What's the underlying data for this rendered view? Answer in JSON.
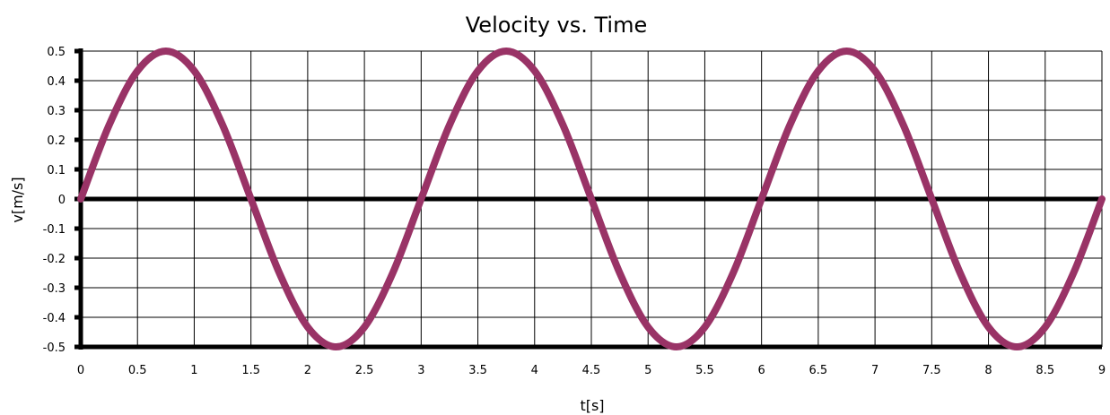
{
  "chart_data": {
    "type": "line",
    "title": "Velocity vs. Time",
    "xlabel": "t[s]",
    "ylabel": "v[m/s]",
    "xlim": [
      0,
      9
    ],
    "ylim": [
      -0.5,
      0.5
    ],
    "x_ticks": [
      "0",
      "0.5",
      "1",
      "1.5",
      "2",
      "2.5",
      "3",
      "3.5",
      "4",
      "4.5",
      "5",
      "5.5",
      "6",
      "6.5",
      "7",
      "7.5",
      "8",
      "8.5",
      "9"
    ],
    "y_ticks": [
      "0.5",
      "0.4",
      "0.3",
      "0.2",
      "0.1",
      "0",
      "-0.1",
      "-0.2",
      "-0.3",
      "-0.4",
      "-0.5"
    ],
    "grid": true,
    "series": [
      {
        "color": "#993366",
        "x": [
          0,
          0.25,
          0.5,
          0.75,
          1,
          1.25,
          1.5,
          1.75,
          2,
          2.25,
          2.5,
          2.75,
          3,
          3.25,
          3.5,
          3.75,
          4,
          4.25,
          4.5,
          4.75,
          5,
          5.25,
          5.5,
          5.75,
          6,
          6.25,
          6.5,
          6.75,
          7,
          7.25,
          7.5,
          7.75,
          8,
          8.25,
          8.5,
          8.75,
          9
        ],
        "values": [
          0,
          0.25,
          0.433,
          0.5,
          0.433,
          0.25,
          0,
          -0.25,
          -0.433,
          -0.5,
          -0.433,
          -0.25,
          0,
          0.25,
          0.433,
          0.5,
          0.433,
          0.25,
          0,
          -0.25,
          -0.433,
          -0.5,
          -0.433,
          -0.25,
          0,
          0.25,
          0.433,
          0.5,
          0.433,
          0.25,
          0,
          -0.25,
          -0.433,
          -0.5,
          -0.433,
          -0.25,
          0
        ]
      }
    ]
  }
}
